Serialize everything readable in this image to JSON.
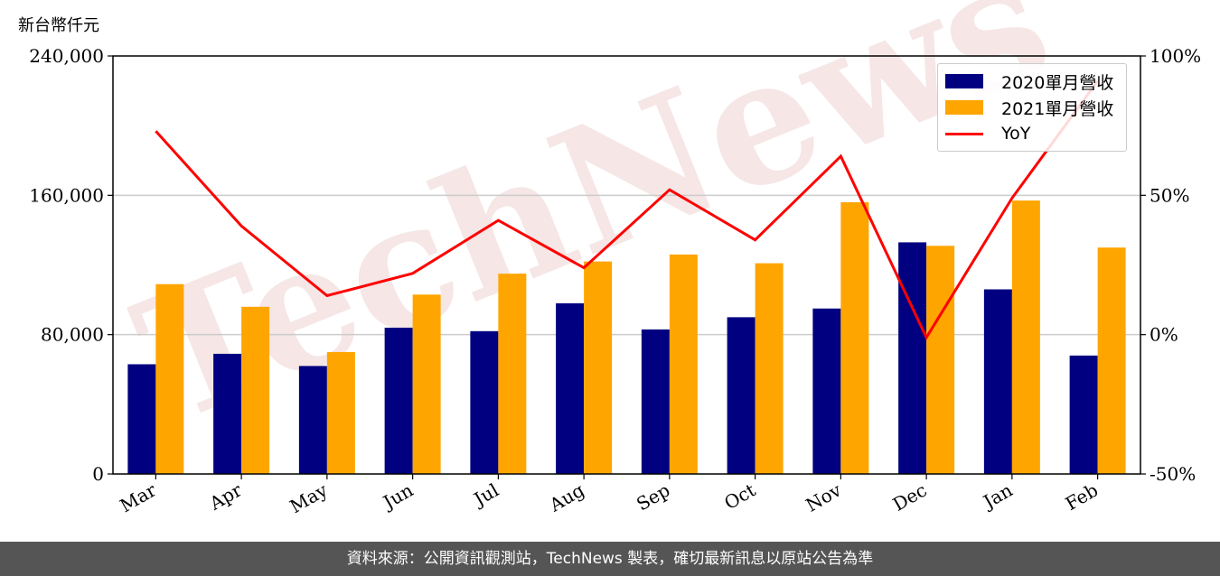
{
  "unit_label": "新台幣仟元",
  "footer_text": "資料來源：公開資訊觀測站，TechNews 製表，確切最新訊息以原站公告為準",
  "watermark": "TechNews",
  "colors": {
    "series_2020": "#000080",
    "series_2021": "#ffa500",
    "yoy": "#ff0000",
    "grid": "#cccccc",
    "footer_bg": "#555555"
  },
  "chart_data": {
    "type": "bar",
    "categories": [
      "Mar",
      "Apr",
      "May",
      "Jun",
      "Jul",
      "Aug",
      "Sep",
      "Oct",
      "Nov",
      "Dec",
      "Jan",
      "Feb"
    ],
    "series": [
      {
        "name": "2020單月營收",
        "values": [
          63000,
          69000,
          62000,
          84000,
          82000,
          98000,
          83000,
          90000,
          95000,
          133000,
          106000,
          68000
        ]
      },
      {
        "name": "2021單月營收",
        "values": [
          109000,
          96000,
          70000,
          103000,
          115000,
          122000,
          126000,
          121000,
          156000,
          131000,
          157000,
          130000
        ]
      }
    ],
    "line_series": {
      "name": "YoY",
      "axis": "right",
      "values": [
        73,
        39,
        14,
        22,
        41,
        24,
        52,
        34,
        64,
        -1,
        49,
        91
      ]
    },
    "ylim": [
      0,
      240000
    ],
    "yticks": [
      0,
      80000,
      160000,
      240000
    ],
    "ytick_labels": [
      "0",
      "80,000",
      "160,000",
      "240,000"
    ],
    "y2lim": [
      -50,
      100
    ],
    "y2ticks": [
      -50,
      0,
      50,
      100
    ],
    "y2tick_labels": [
      "-50%",
      "0%",
      "50%",
      "100%"
    ],
    "grid": "horizontal",
    "legend_position": "top-right"
  }
}
